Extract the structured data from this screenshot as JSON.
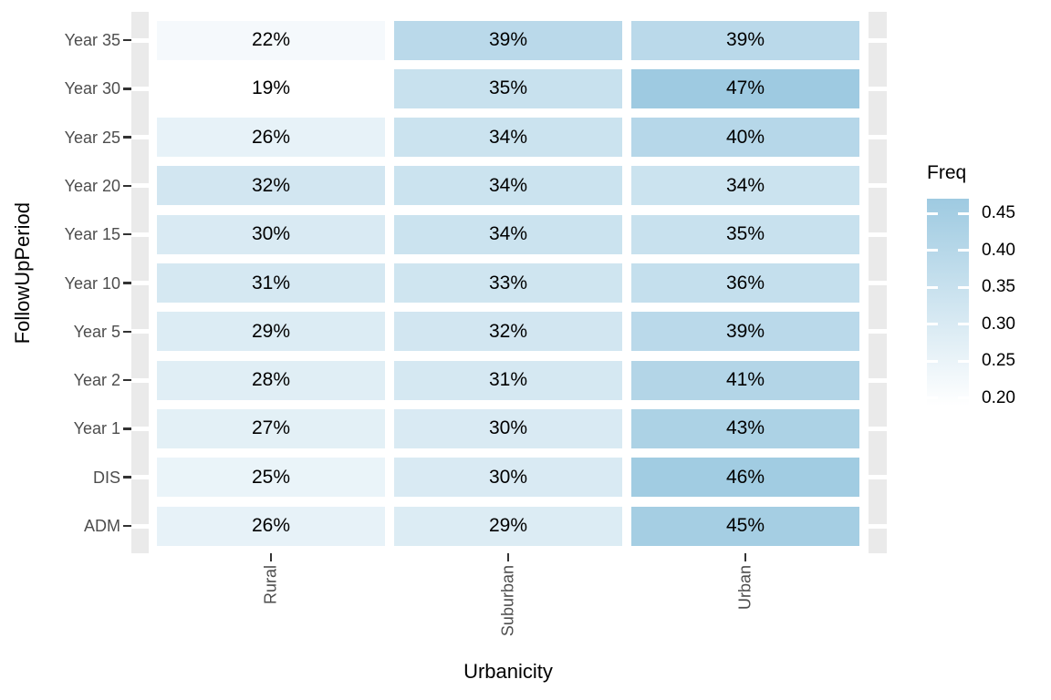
{
  "chart_data": {
    "type": "heatmap",
    "xlabel": "Urbanicity",
    "ylabel": "FollowUpPeriod",
    "x_categories": [
      "Rural",
      "Suburban",
      "Urban"
    ],
    "y_categories": [
      "Year 35",
      "Year 30",
      "Year 25",
      "Year 20",
      "Year 15",
      "Year 10",
      "Year 5",
      "Year 2",
      "Year 1",
      "DIS",
      "ADM"
    ],
    "cell_labels": [
      [
        "22%",
        "39%",
        "39%"
      ],
      [
        "19%",
        "35%",
        "47%"
      ],
      [
        "26%",
        "34%",
        "40%"
      ],
      [
        "32%",
        "34%",
        "34%"
      ],
      [
        "30%",
        "34%",
        "35%"
      ],
      [
        "31%",
        "33%",
        "36%"
      ],
      [
        "29%",
        "32%",
        "39%"
      ],
      [
        "28%",
        "31%",
        "41%"
      ],
      [
        "27%",
        "30%",
        "43%"
      ],
      [
        "25%",
        "30%",
        "46%"
      ],
      [
        "26%",
        "29%",
        "45%"
      ]
    ],
    "values": [
      [
        0.22,
        0.39,
        0.39
      ],
      [
        0.19,
        0.35,
        0.47
      ],
      [
        0.26,
        0.34,
        0.4
      ],
      [
        0.32,
        0.34,
        0.34
      ],
      [
        0.3,
        0.34,
        0.35
      ],
      [
        0.31,
        0.33,
        0.36
      ],
      [
        0.29,
        0.32,
        0.39
      ],
      [
        0.28,
        0.31,
        0.41
      ],
      [
        0.27,
        0.3,
        0.43
      ],
      [
        0.25,
        0.3,
        0.46
      ],
      [
        0.26,
        0.29,
        0.45
      ]
    ],
    "legend": {
      "title": "Freq",
      "tick_labels": [
        "0.45",
        "0.40",
        "0.35",
        "0.30",
        "0.25",
        "0.20"
      ],
      "tick_values": [
        0.45,
        0.4,
        0.35,
        0.3,
        0.25,
        0.2
      ],
      "domain": [
        0.19,
        0.47
      ],
      "position": "right"
    },
    "colors": {
      "low": "#FFFFFF",
      "high": "#9ECAE1",
      "panel_strip": "#EAEAEA",
      "gridline": "#FFFFFF",
      "axis_text": "#4D4D4D",
      "tick_mark": "#333333",
      "label_text": "#000000"
    },
    "grid": "panel strips visible at left/right edges only",
    "legend_position": "right"
  }
}
